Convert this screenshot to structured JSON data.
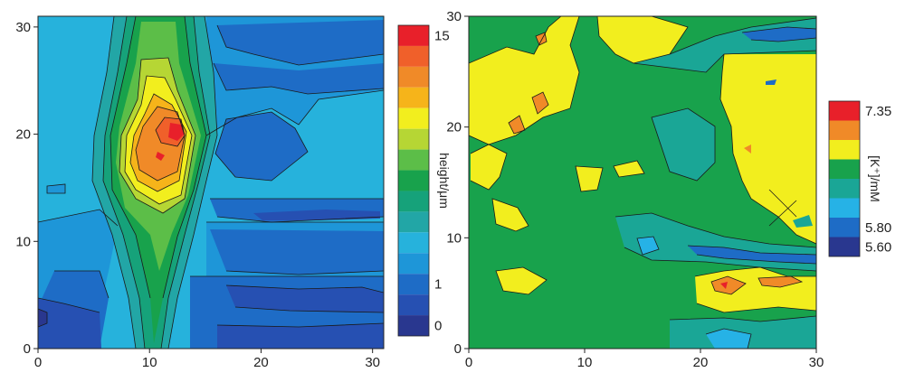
{
  "chart_data": [
    {
      "type": "heatmap",
      "panel": "left",
      "xlim": [
        0,
        31
      ],
      "ylim": [
        0,
        31
      ],
      "x_ticks": [
        "0",
        "10",
        "20",
        "30"
      ],
      "y_ticks": [
        "0",
        "10",
        "20",
        "30"
      ],
      "colorbar_title": "height/μm",
      "colorbar_labels": [
        "15",
        "1",
        "0"
      ],
      "colorbar_colors": [
        "#e8202a",
        "#f0602a",
        "#f08a28",
        "#f6b41a",
        "#f2ee1e",
        "#b6d634",
        "#5cbe48",
        "#18a24c",
        "#16a27a",
        "#22a6a6",
        "#26b2dc",
        "#1e96d8",
        "#1e6cc6",
        "#2650b2",
        "#29378f"
      ],
      "description_levels": "contour field of height; peak ~15 near x=12,y=20 on a vertical band x≈8–16"
    },
    {
      "type": "heatmap",
      "panel": "right",
      "xlim": [
        0,
        30
      ],
      "ylim": [
        0,
        30
      ],
      "x_ticks": [
        "0",
        "10",
        "20",
        "30"
      ],
      "y_ticks": [
        "0",
        "10",
        "20",
        "30"
      ],
      "colorbar_title": "[K⁺]/mM",
      "colorbar_labels": [
        "7.35",
        "5.80",
        "5.60"
      ],
      "colorbar_colors": [
        "#e8202a",
        "#f08a28",
        "#f2ee1e",
        "#18a24c",
        "#1aa696",
        "#26b2e6",
        "#1e6cc6",
        "#29378f"
      ],
      "description_levels": "contour field of potassium concentration; mostly green with yellow regions"
    }
  ]
}
